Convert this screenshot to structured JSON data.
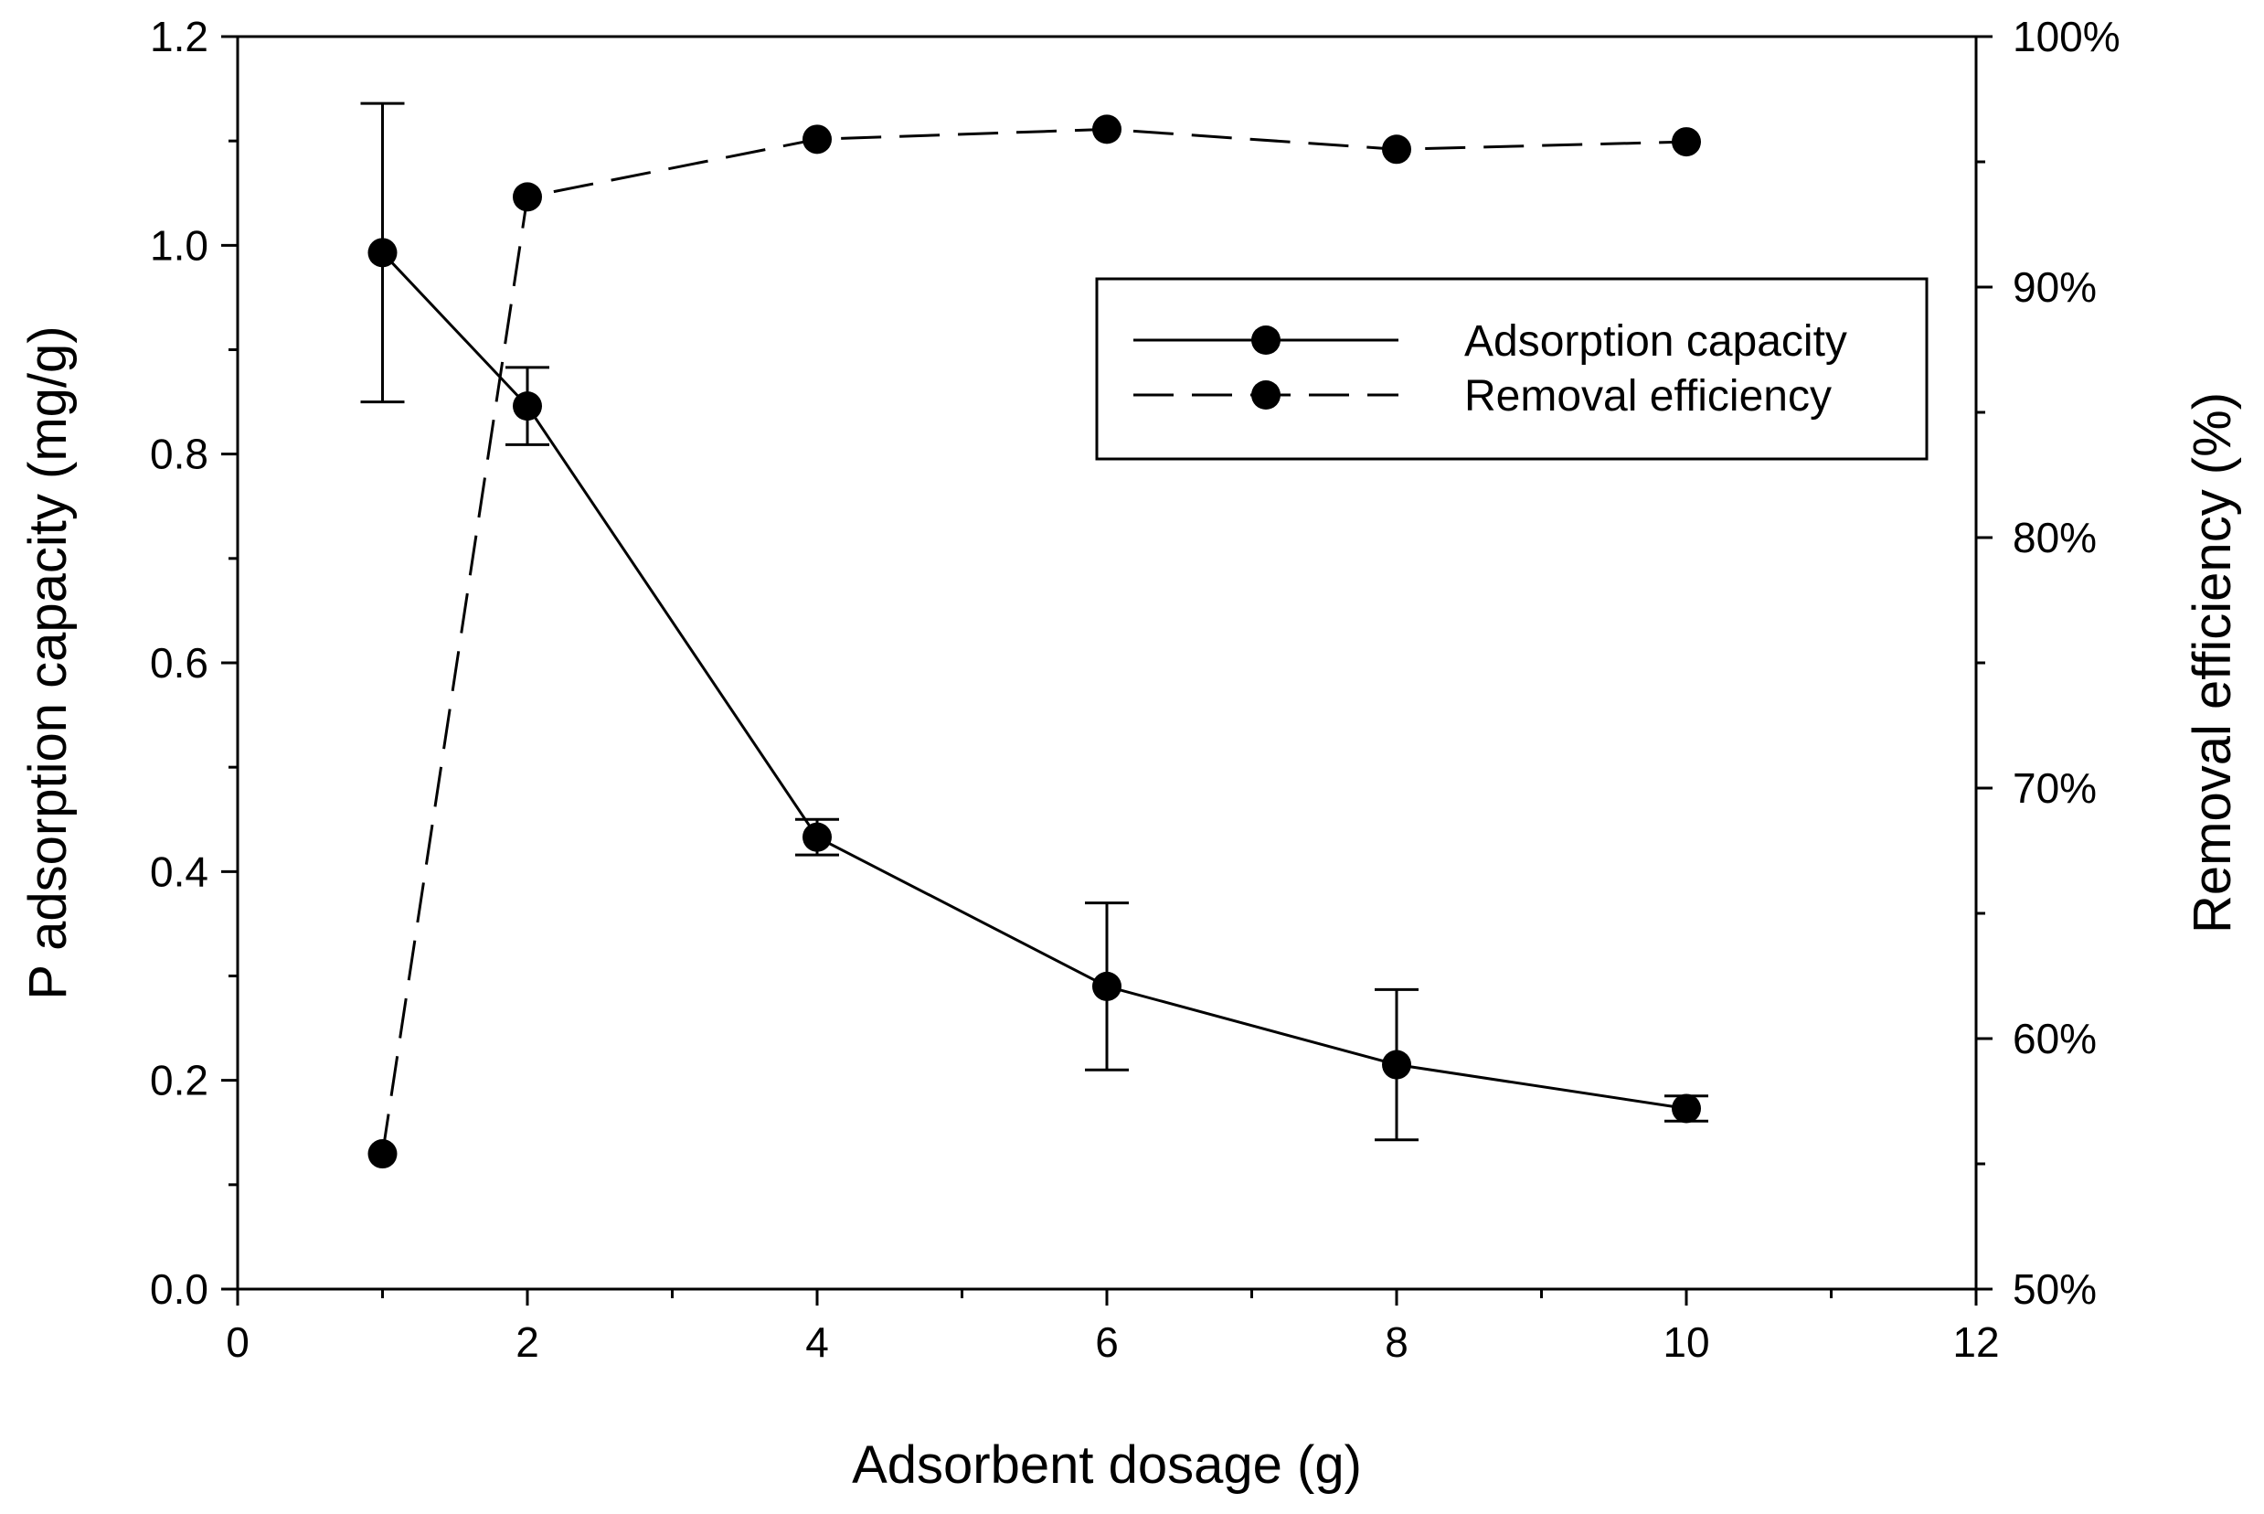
{
  "chart_data": {
    "type": "line",
    "title": "",
    "xlabel": "Adsorbent dosage (g)",
    "ylabel": "P adsorption capacity (mg/g)",
    "y2label": "Removal efficiency (%)",
    "xlim": [
      0,
      12
    ],
    "ylim": [
      0,
      1.2
    ],
    "y2lim": [
      50,
      100
    ],
    "xticks": [
      "0",
      "2",
      "4",
      "6",
      "8",
      "10",
      "12"
    ],
    "yticks": [
      "0.0",
      "0.2",
      "0.4",
      "0.6",
      "0.8",
      "1.0",
      "1.2"
    ],
    "y2ticks": [
      "50%",
      "60%",
      "70%",
      "80%",
      "90%",
      "100%"
    ],
    "grid": false,
    "legend_position": "upper-right",
    "series": [
      {
        "name": "Adsorption capacity",
        "axis": "left",
        "line_style": "solid",
        "x": [
          1,
          2,
          4,
          6,
          8,
          10
        ],
        "y": [
          0.993,
          0.846,
          0.433,
          0.29,
          0.215,
          0.173
        ],
        "error": [
          0.143,
          0.037,
          0.017,
          0.08,
          0.072,
          0.012
        ]
      },
      {
        "name": "Removal efficiency",
        "axis": "right",
        "line_style": "dashed",
        "x": [
          1,
          2,
          4,
          6,
          8,
          10
        ],
        "y": [
          55.4,
          93.6,
          95.9,
          96.3,
          95.5,
          95.8
        ]
      }
    ]
  }
}
